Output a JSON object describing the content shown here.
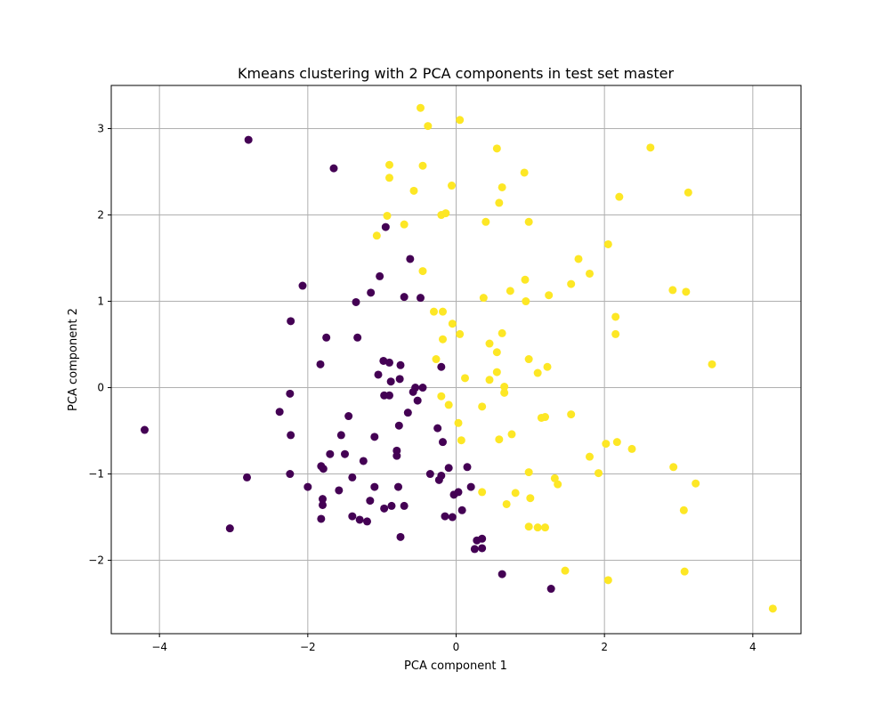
{
  "chart_data": {
    "type": "scatter",
    "title": "Kmeans clustering with 2 PCA components in test set master",
    "xlabel": "PCA component 1",
    "ylabel": "PCA component 2",
    "xlim": [
      -4.65,
      4.65
    ],
    "ylim": [
      -2.85,
      3.5
    ],
    "xticks": [
      -4,
      -2,
      0,
      2,
      4
    ],
    "yticks": [
      -2,
      -1,
      0,
      1,
      2,
      3
    ],
    "grid": true,
    "colors": {
      "cluster_0": "#440154",
      "cluster_1": "#fde725",
      "grid": "#b0b0b0",
      "axes": "#000000"
    },
    "series": [
      {
        "color": "#440154",
        "points": [
          [
            -2.8,
            2.87
          ],
          [
            -1.65,
            2.54
          ],
          [
            -0.95,
            1.86
          ],
          [
            -0.62,
            1.49
          ],
          [
            -2.07,
            1.18
          ],
          [
            -1.03,
            1.29
          ],
          [
            -1.15,
            1.1
          ],
          [
            -1.35,
            0.99
          ],
          [
            -0.7,
            1.05
          ],
          [
            -0.48,
            1.04
          ],
          [
            -2.23,
            0.77
          ],
          [
            -1.75,
            0.58
          ],
          [
            -1.33,
            0.58
          ],
          [
            -1.83,
            0.27
          ],
          [
            -0.98,
            0.31
          ],
          [
            -0.9,
            0.29
          ],
          [
            -0.75,
            0.26
          ],
          [
            -1.05,
            0.15
          ],
          [
            -0.88,
            0.07
          ],
          [
            -0.76,
            0.1
          ],
          [
            -0.2,
            0.24
          ],
          [
            -0.55,
            0.0
          ],
          [
            -0.45,
            0.0
          ],
          [
            -0.58,
            -0.05
          ],
          [
            -0.97,
            -0.09
          ],
          [
            -0.9,
            -0.09
          ],
          [
            -0.52,
            -0.15
          ],
          [
            -2.24,
            -0.07
          ],
          [
            -2.38,
            -0.28
          ],
          [
            -0.65,
            -0.29
          ],
          [
            -1.45,
            -0.33
          ],
          [
            -0.77,
            -0.44
          ],
          [
            -4.2,
            -0.49
          ],
          [
            -2.23,
            -0.55
          ],
          [
            -1.55,
            -0.55
          ],
          [
            -1.1,
            -0.57
          ],
          [
            -0.25,
            -0.47
          ],
          [
            -0.18,
            -0.63
          ],
          [
            -0.8,
            -0.73
          ],
          [
            -0.8,
            -0.79
          ],
          [
            -1.7,
            -0.77
          ],
          [
            -1.5,
            -0.77
          ],
          [
            -1.25,
            -0.85
          ],
          [
            -1.82,
            -0.91
          ],
          [
            -1.79,
            -0.94
          ],
          [
            -0.35,
            -1.0
          ],
          [
            -0.2,
            -1.02
          ],
          [
            -0.23,
            -1.07
          ],
          [
            0.15,
            -0.92
          ],
          [
            -0.1,
            -0.93
          ],
          [
            -2.24,
            -1.0
          ],
          [
            -2.82,
            -1.04
          ],
          [
            -1.4,
            -1.04
          ],
          [
            -2.0,
            -1.15
          ],
          [
            -1.58,
            -1.19
          ],
          [
            -1.1,
            -1.15
          ],
          [
            -0.78,
            -1.15
          ],
          [
            -0.03,
            -1.24
          ],
          [
            0.03,
            -1.21
          ],
          [
            0.2,
            -1.15
          ],
          [
            -1.8,
            -1.29
          ],
          [
            -1.8,
            -1.36
          ],
          [
            -1.16,
            -1.31
          ],
          [
            -0.97,
            -1.4
          ],
          [
            -0.87,
            -1.37
          ],
          [
            -0.7,
            -1.37
          ],
          [
            0.08,
            -1.42
          ],
          [
            -1.4,
            -1.49
          ],
          [
            -1.3,
            -1.53
          ],
          [
            -1.2,
            -1.55
          ],
          [
            -1.82,
            -1.52
          ],
          [
            -0.15,
            -1.49
          ],
          [
            -0.05,
            -1.5
          ],
          [
            -3.05,
            -1.63
          ],
          [
            -0.75,
            -1.73
          ],
          [
            0.28,
            -1.77
          ],
          [
            0.35,
            -1.75
          ],
          [
            0.25,
            -1.87
          ],
          [
            0.35,
            -1.86
          ],
          [
            0.62,
            -2.16
          ],
          [
            1.28,
            -2.33
          ]
        ]
      },
      {
        "color": "#fde725",
        "points": [
          [
            -0.48,
            3.24
          ],
          [
            0.05,
            3.1
          ],
          [
            -0.38,
            3.03
          ],
          [
            0.55,
            2.77
          ],
          [
            2.62,
            2.78
          ],
          [
            -0.9,
            2.58
          ],
          [
            -0.45,
            2.57
          ],
          [
            0.92,
            2.49
          ],
          [
            -0.9,
            2.43
          ],
          [
            -0.57,
            2.28
          ],
          [
            -0.06,
            2.34
          ],
          [
            0.62,
            2.32
          ],
          [
            2.2,
            2.21
          ],
          [
            3.13,
            2.26
          ],
          [
            0.58,
            2.14
          ],
          [
            -0.93,
            1.99
          ],
          [
            -0.2,
            2.0
          ],
          [
            -0.14,
            2.02
          ],
          [
            0.4,
            1.92
          ],
          [
            0.98,
            1.92
          ],
          [
            -0.7,
            1.89
          ],
          [
            -1.07,
            1.76
          ],
          [
            2.05,
            1.66
          ],
          [
            1.65,
            1.49
          ],
          [
            -0.45,
            1.35
          ],
          [
            1.8,
            1.32
          ],
          [
            0.93,
            1.25
          ],
          [
            1.55,
            1.2
          ],
          [
            0.73,
            1.12
          ],
          [
            2.92,
            1.13
          ],
          [
            3.1,
            1.11
          ],
          [
            1.25,
            1.07
          ],
          [
            0.37,
            1.04
          ],
          [
            0.94,
            1.0
          ],
          [
            -0.3,
            0.88
          ],
          [
            -0.18,
            0.88
          ],
          [
            2.15,
            0.82
          ],
          [
            -0.05,
            0.74
          ],
          [
            0.05,
            0.62
          ],
          [
            0.62,
            0.63
          ],
          [
            2.15,
            0.62
          ],
          [
            -0.18,
            0.56
          ],
          [
            0.45,
            0.51
          ],
          [
            0.55,
            0.41
          ],
          [
            -0.27,
            0.33
          ],
          [
            0.98,
            0.33
          ],
          [
            3.45,
            0.27
          ],
          [
            1.23,
            0.24
          ],
          [
            0.55,
            0.18
          ],
          [
            1.1,
            0.17
          ],
          [
            0.12,
            0.11
          ],
          [
            0.45,
            0.09
          ],
          [
            0.65,
            0.01
          ],
          [
            0.65,
            -0.06
          ],
          [
            -0.2,
            -0.1
          ],
          [
            -0.1,
            -0.2
          ],
          [
            0.35,
            -0.22
          ],
          [
            1.2,
            -0.34
          ],
          [
            1.15,
            -0.35
          ],
          [
            1.55,
            -0.31
          ],
          [
            0.03,
            -0.41
          ],
          [
            0.75,
            -0.54
          ],
          [
            0.07,
            -0.61
          ],
          [
            0.58,
            -0.6
          ],
          [
            2.02,
            -0.65
          ],
          [
            2.17,
            -0.63
          ],
          [
            2.37,
            -0.71
          ],
          [
            1.8,
            -0.8
          ],
          [
            2.93,
            -0.92
          ],
          [
            0.98,
            -0.98
          ],
          [
            1.92,
            -0.99
          ],
          [
            1.33,
            -1.05
          ],
          [
            1.37,
            -1.12
          ],
          [
            3.23,
            -1.11
          ],
          [
            0.35,
            -1.21
          ],
          [
            0.8,
            -1.22
          ],
          [
            1.0,
            -1.28
          ],
          [
            0.68,
            -1.35
          ],
          [
            3.07,
            -1.42
          ],
          [
            0.98,
            -1.61
          ],
          [
            1.1,
            -1.62
          ],
          [
            1.2,
            -1.62
          ],
          [
            1.47,
            -2.12
          ],
          [
            3.08,
            -2.13
          ],
          [
            2.05,
            -2.23
          ],
          [
            4.27,
            -2.56
          ]
        ]
      }
    ]
  }
}
